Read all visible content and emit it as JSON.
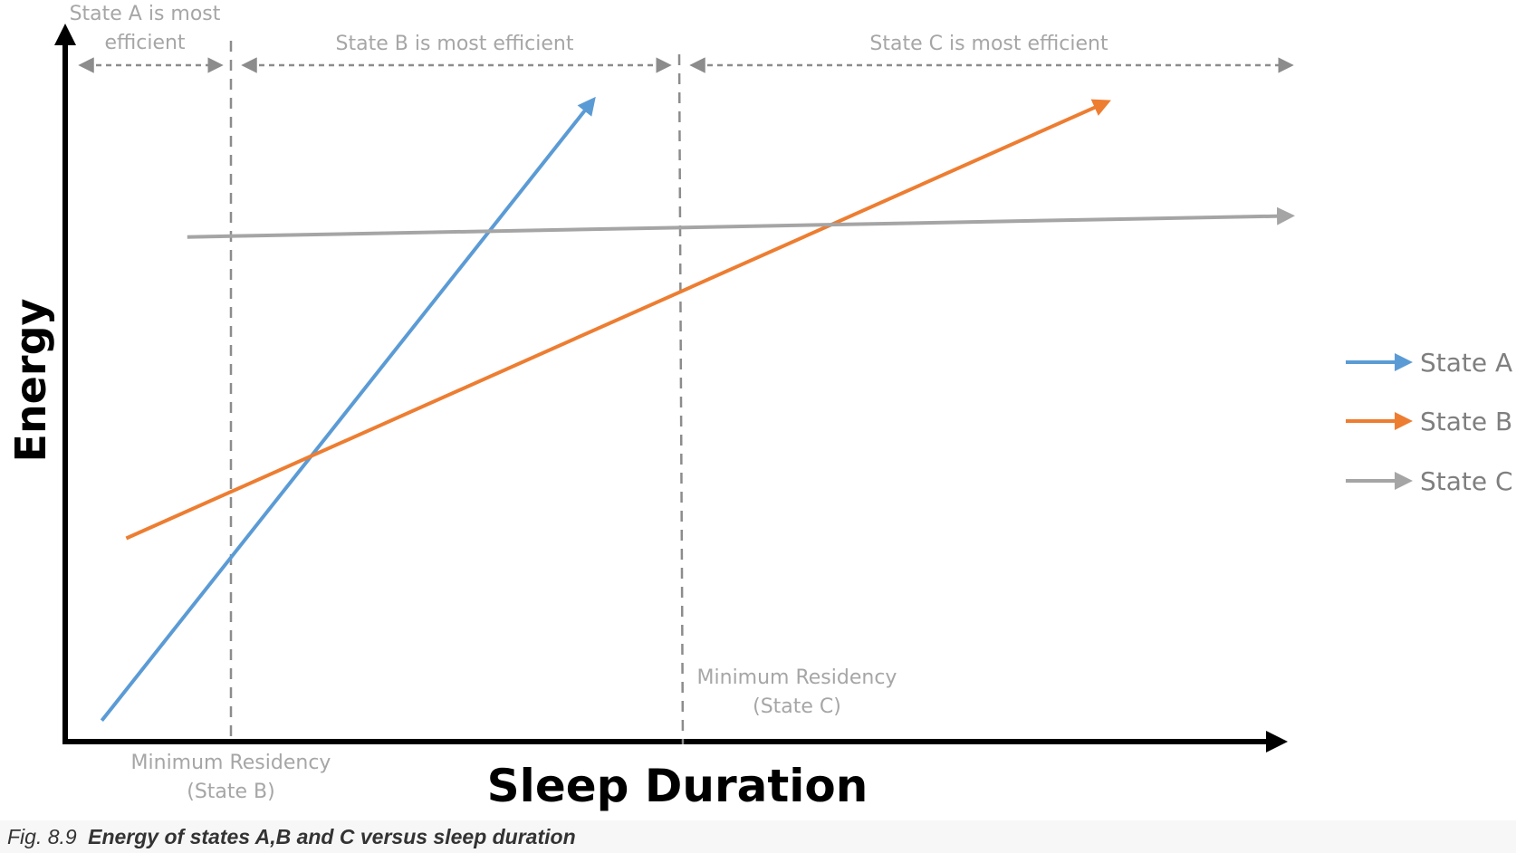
{
  "chart_data": {
    "type": "line",
    "x_axis_label": "Sleep Duration",
    "y_axis_label": "Energy",
    "x_ticks_shown": false,
    "y_ticks_shown": false,
    "grid": false,
    "legend_position": "right",
    "series": [
      {
        "name": "State A",
        "color": "#5b9bd5",
        "points": [
          [
            0.03,
            0.03
          ],
          [
            0.43,
            0.91
          ]
        ]
      },
      {
        "name": "State B",
        "color": "#ed7d31",
        "points": [
          [
            0.05,
            0.29
          ],
          [
            0.85,
            0.91
          ]
        ]
      },
      {
        "name": "State C",
        "color": "#a5a5a5",
        "points": [
          [
            0.1,
            0.72
          ],
          [
            1.0,
            0.75
          ]
        ]
      }
    ],
    "vertical_markers": [
      {
        "x": 0.19,
        "label_line1": "Minimum Residency",
        "label_line2": "(State B)"
      },
      {
        "x": 0.59,
        "label_line1": "Minimum Residency",
        "label_line2": "(State C)"
      }
    ],
    "regions": [
      {
        "label_line1": "State A is most",
        "label_line2": "efficient"
      },
      {
        "label": "State B is most efficient"
      },
      {
        "label": "State C is most efficient"
      }
    ],
    "axis_color": "#000000",
    "annotation_color": "#a6a6a6"
  },
  "caption": {
    "fig_number": "Fig. 8.9",
    "text": "Energy of states A,B and C versus sleep duration"
  }
}
